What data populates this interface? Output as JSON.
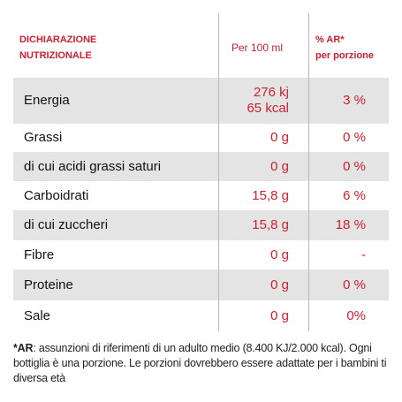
{
  "header": {
    "title_lines": [
      "DICHIARAZIONE",
      "NUTRIZIONALE"
    ],
    "per_100ml": "Per 100 ml",
    "ar_lines": [
      "% AR*",
      "per porzione"
    ]
  },
  "table": {
    "rows": [
      {
        "name": "Energia",
        "per_100ml": [
          "276 kj",
          "65 kcal"
        ],
        "ar": "3 %"
      },
      {
        "name": "Grassi",
        "per_100ml": [
          "0 g"
        ],
        "ar": "0 %"
      },
      {
        "name": "di cui acidi grassi saturi",
        "per_100ml": [
          "0 g"
        ],
        "ar": "0 %"
      },
      {
        "name": "Carboidrati",
        "per_100ml": [
          "15,8 g"
        ],
        "ar": "6 %"
      },
      {
        "name": "di cui zuccheri",
        "per_100ml": [
          "15,8 g"
        ],
        "ar": "18 %"
      },
      {
        "name": "Fibre",
        "per_100ml": [
          "0 g"
        ],
        "ar": "-"
      },
      {
        "name": "Proteine",
        "per_100ml": [
          "0 g"
        ],
        "ar": "0 %"
      },
      {
        "name": "Sale",
        "per_100ml": [
          "0 g"
        ],
        "ar": "0%"
      }
    ]
  },
  "footnote": {
    "label": "*AR",
    "text": ": assunzioni di riferimenti di un adulto medio (8.400 KJ/2.000 kcal). Ogni bottiglia è una porzione. Le porzioni dovrebbero essere adattate per i bambini ti diversa età"
  }
}
